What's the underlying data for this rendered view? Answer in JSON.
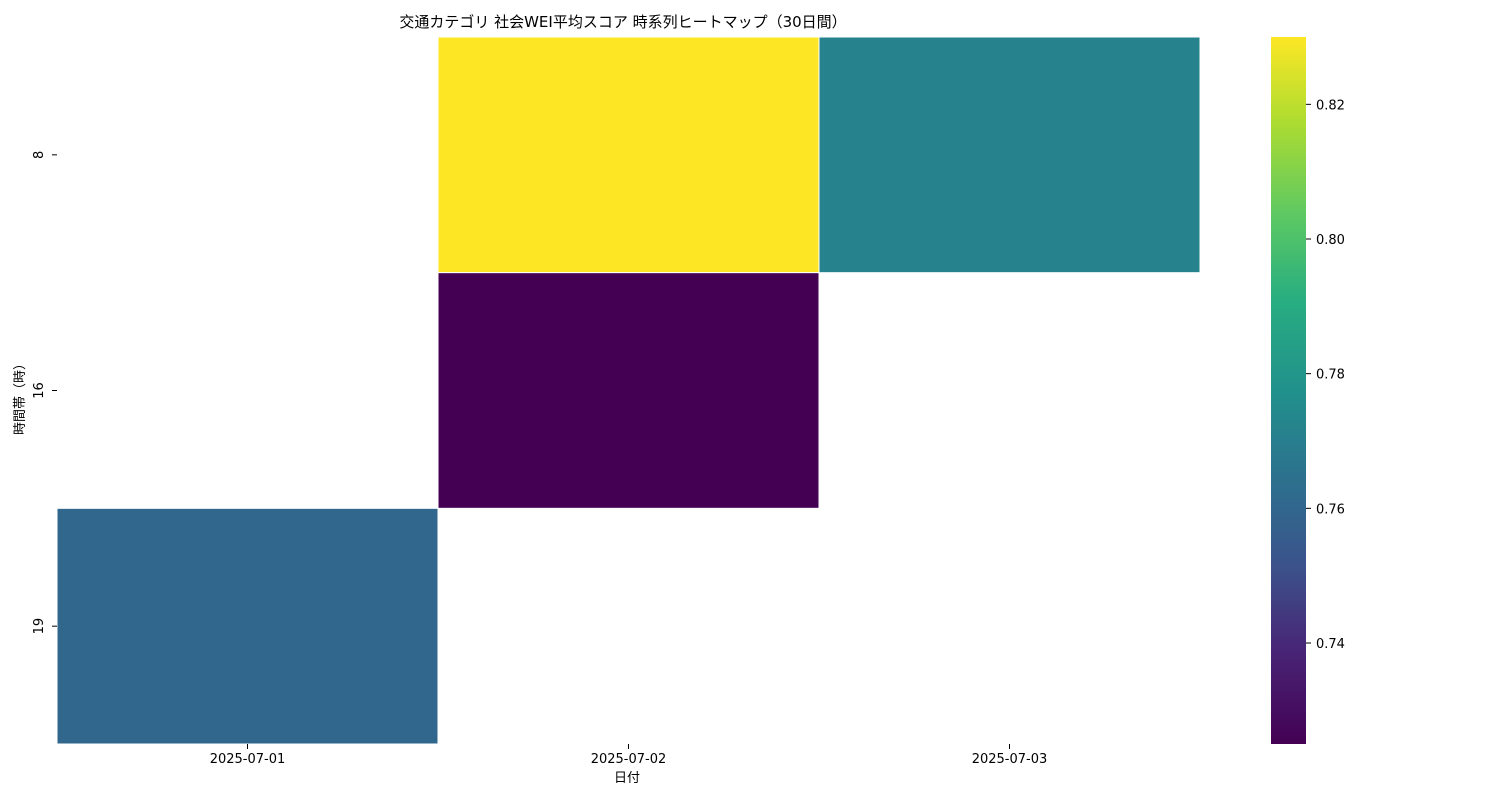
{
  "chart_data": {
    "type": "heatmap",
    "title": "交通カテゴリ 社会WEI平均スコア 時系列ヒートマップ（30日間）",
    "xlabel": "日付",
    "ylabel": "時間帯（時）",
    "x_categories": [
      "2025-07-01",
      "2025-07-02",
      "2025-07-03"
    ],
    "y_categories": [
      "8",
      "16",
      "19"
    ],
    "cells": [
      {
        "x": "2025-07-02",
        "y": "8",
        "value": 0.83
      },
      {
        "x": "2025-07-03",
        "y": "8",
        "value": 0.772
      },
      {
        "x": "2025-07-02",
        "y": "16",
        "value": 0.725
      },
      {
        "x": "2025-07-01",
        "y": "19",
        "value": 0.76
      }
    ],
    "colormap": "viridis",
    "colorbar": {
      "ticks": [
        "0.74",
        "0.76",
        "0.78",
        "0.80",
        "0.82"
      ],
      "range": [
        0.725,
        0.83
      ]
    },
    "grid": false,
    "legend": "colorbar-right"
  }
}
